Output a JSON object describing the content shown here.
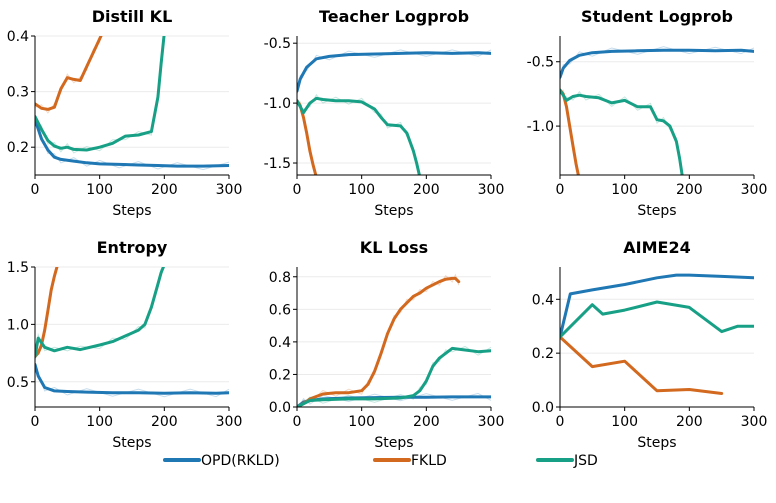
{
  "colors": {
    "rkld": "#1f77b4",
    "fkld": "#d2691e",
    "jsd": "#17a085"
  },
  "legend": [
    {
      "key": "rkld",
      "label": "OPD(RKLD)"
    },
    {
      "key": "fkld",
      "label": "FKLD"
    },
    {
      "key": "jsd",
      "label": "JSD"
    }
  ],
  "chart_data": [
    {
      "type": "line",
      "title": "Distill KL",
      "xlabel": "Steps",
      "xlim": [
        0,
        300
      ],
      "ylim": [
        0.15,
        0.4
      ],
      "xticks": [
        0,
        100,
        200,
        300
      ],
      "yticks": [
        0.2,
        0.3,
        0.4
      ],
      "ytick_labels": [
        "0.2",
        "0.3",
        "0.4"
      ],
      "series": [
        {
          "key": "rkld",
          "x": [
            0,
            10,
            20,
            30,
            40,
            60,
            80,
            100,
            130,
            160,
            190,
            220,
            260,
            300
          ],
          "y": [
            0.25,
            0.215,
            0.195,
            0.182,
            0.178,
            0.175,
            0.172,
            0.17,
            0.169,
            0.168,
            0.167,
            0.166,
            0.166,
            0.167
          ]
        },
        {
          "key": "fkld",
          "x": [
            0,
            10,
            20,
            30,
            40,
            50,
            60,
            70,
            80,
            90,
            100,
            104
          ],
          "y": [
            0.278,
            0.27,
            0.268,
            0.272,
            0.305,
            0.325,
            0.322,
            0.32,
            0.345,
            0.37,
            0.395,
            0.405
          ]
        },
        {
          "key": "jsd",
          "x": [
            0,
            10,
            20,
            30,
            40,
            50,
            60,
            80,
            100,
            120,
            140,
            160,
            180,
            190,
            195,
            200
          ],
          "y": [
            0.255,
            0.232,
            0.212,
            0.202,
            0.198,
            0.2,
            0.196,
            0.195,
            0.2,
            0.207,
            0.22,
            0.222,
            0.228,
            0.29,
            0.35,
            0.405
          ]
        }
      ]
    },
    {
      "type": "line",
      "title": "Teacher Logprob",
      "xlabel": "Steps",
      "xlim": [
        0,
        300
      ],
      "ylim": [
        -1.6,
        -0.44
      ],
      "xticks": [
        0,
        100,
        200,
        300
      ],
      "yticks": [
        -1.5,
        -1.0,
        -0.5
      ],
      "ytick_labels": [
        "-1.5",
        "-1.0",
        "-0.5"
      ],
      "series": [
        {
          "key": "rkld",
          "x": [
            0,
            5,
            15,
            30,
            50,
            80,
            120,
            160,
            200,
            240,
            280,
            300
          ],
          "y": [
            -0.9,
            -0.8,
            -0.7,
            -0.63,
            -0.61,
            -0.595,
            -0.59,
            -0.585,
            -0.58,
            -0.585,
            -0.58,
            -0.585
          ]
        },
        {
          "key": "fkld",
          "x": [
            0,
            5,
            10,
            15,
            20,
            25,
            30
          ],
          "y": [
            -0.98,
            -1.02,
            -1.12,
            -1.25,
            -1.4,
            -1.52,
            -1.62
          ]
        },
        {
          "key": "jsd",
          "x": [
            0,
            10,
            20,
            30,
            40,
            60,
            80,
            100,
            120,
            130,
            140,
            160,
            170,
            180,
            185,
            190
          ],
          "y": [
            -0.98,
            -1.08,
            -1.0,
            -0.96,
            -0.97,
            -0.98,
            -0.98,
            -0.99,
            -1.05,
            -1.12,
            -1.18,
            -1.19,
            -1.25,
            -1.4,
            -1.5,
            -1.62
          ]
        }
      ]
    },
    {
      "type": "line",
      "title": "Student Logprob",
      "xlabel": "Steps",
      "xlim": [
        0,
        300
      ],
      "ylim": [
        -1.38,
        -0.3
      ],
      "xticks": [
        0,
        100,
        200,
        300
      ],
      "yticks": [
        -1.0,
        -0.5
      ],
      "ytick_labels": [
        "-1.0",
        "-0.5"
      ],
      "series": [
        {
          "key": "rkld",
          "x": [
            0,
            5,
            15,
            30,
            50,
            80,
            120,
            160,
            200,
            240,
            280,
            300
          ],
          "y": [
            -0.62,
            -0.55,
            -0.49,
            -0.45,
            -0.43,
            -0.42,
            -0.415,
            -0.41,
            -0.41,
            -0.415,
            -0.41,
            -0.42
          ]
        },
        {
          "key": "fkld",
          "x": [
            0,
            5,
            10,
            15,
            20,
            25,
            30
          ],
          "y": [
            -0.72,
            -0.75,
            -0.85,
            -1.0,
            -1.15,
            -1.3,
            -1.42
          ]
        },
        {
          "key": "jsd",
          "x": [
            0,
            10,
            20,
            30,
            40,
            60,
            80,
            100,
            120,
            140,
            150,
            160,
            170,
            180,
            185,
            190
          ],
          "y": [
            -0.72,
            -0.8,
            -0.77,
            -0.76,
            -0.77,
            -0.78,
            -0.82,
            -0.8,
            -0.85,
            -0.85,
            -0.95,
            -0.96,
            -1.0,
            -1.12,
            -1.25,
            -1.42
          ]
        }
      ]
    },
    {
      "type": "line",
      "title": "Entropy",
      "xlabel": "Steps",
      "xlim": [
        0,
        300
      ],
      "ylim": [
        0.28,
        1.5
      ],
      "xticks": [
        0,
        100,
        200,
        300
      ],
      "yticks": [
        0.5,
        1.0,
        1.5
      ],
      "ytick_labels": [
        "0.5",
        "1.0",
        "1.5"
      ],
      "series": [
        {
          "key": "rkld",
          "x": [
            0,
            5,
            15,
            30,
            50,
            80,
            120,
            160,
            200,
            240,
            280,
            300
          ],
          "y": [
            0.65,
            0.55,
            0.45,
            0.42,
            0.415,
            0.41,
            0.405,
            0.405,
            0.4,
            0.405,
            0.4,
            0.405
          ]
        },
        {
          "key": "fkld",
          "x": [
            0,
            5,
            10,
            15,
            20,
            25,
            30,
            35
          ],
          "y": [
            0.72,
            0.75,
            0.82,
            0.95,
            1.12,
            1.3,
            1.42,
            1.52
          ]
        },
        {
          "key": "jsd",
          "x": [
            0,
            5,
            15,
            30,
            50,
            70,
            100,
            120,
            140,
            160,
            170,
            180,
            190,
            195,
            200
          ],
          "y": [
            0.72,
            0.88,
            0.8,
            0.77,
            0.8,
            0.78,
            0.82,
            0.85,
            0.9,
            0.95,
            1.0,
            1.15,
            1.35,
            1.45,
            1.52
          ]
        }
      ]
    },
    {
      "type": "line",
      "title": "KL Loss",
      "xlabel": "Steps",
      "xlim": [
        0,
        300
      ],
      "ylim": [
        0.0,
        0.86
      ],
      "xticks": [
        0,
        100,
        200,
        300
      ],
      "yticks": [
        0.0,
        0.2,
        0.4,
        0.6,
        0.8
      ],
      "ytick_labels": [
        "0.0",
        "0.2",
        "0.4",
        "0.6",
        "0.8"
      ],
      "series": [
        {
          "key": "rkld",
          "x": [
            0,
            10,
            20,
            40,
            80,
            120,
            160,
            200,
            240,
            280,
            300
          ],
          "y": [
            0.0,
            0.03,
            0.04,
            0.05,
            0.055,
            0.058,
            0.06,
            0.06,
            0.062,
            0.062,
            0.062
          ]
        },
        {
          "key": "fkld",
          "x": [
            0,
            10,
            20,
            40,
            60,
            80,
            100,
            110,
            120,
            130,
            140,
            150,
            160,
            170,
            180,
            190,
            200,
            210,
            220,
            230,
            240,
            245,
            250
          ],
          "y": [
            0.0,
            0.02,
            0.05,
            0.08,
            0.088,
            0.088,
            0.1,
            0.14,
            0.22,
            0.33,
            0.45,
            0.54,
            0.6,
            0.64,
            0.68,
            0.7,
            0.73,
            0.75,
            0.77,
            0.785,
            0.79,
            0.79,
            0.77
          ]
        },
        {
          "key": "jsd",
          "x": [
            0,
            20,
            40,
            80,
            120,
            160,
            180,
            190,
            200,
            210,
            220,
            230,
            240,
            260,
            280,
            300
          ],
          "y": [
            0.0,
            0.04,
            0.045,
            0.05,
            0.05,
            0.055,
            0.07,
            0.1,
            0.16,
            0.25,
            0.3,
            0.33,
            0.36,
            0.35,
            0.34,
            0.345
          ]
        }
      ]
    },
    {
      "type": "line",
      "title": "AIME24",
      "xlabel": "Steps",
      "xlim": [
        0,
        300
      ],
      "ylim": [
        0.0,
        0.52
      ],
      "xticks": [
        0,
        100,
        200,
        300
      ],
      "yticks": [
        0.0,
        0.2,
        0.4
      ],
      "ytick_labels": [
        "0.0",
        "0.2",
        "0.4"
      ],
      "series": [
        {
          "key": "rkld",
          "x": [
            0,
            16,
            50,
            100,
            150,
            180,
            200,
            250,
            300
          ],
          "y": [
            0.26,
            0.42,
            0.435,
            0.455,
            0.48,
            0.49,
            0.49,
            0.485,
            0.48
          ]
        },
        {
          "key": "fkld",
          "x": [
            0,
            50,
            100,
            150,
            200,
            250
          ],
          "y": [
            0.26,
            0.15,
            0.17,
            0.06,
            0.065,
            0.05
          ]
        },
        {
          "key": "jsd",
          "x": [
            0,
            50,
            66,
            100,
            150,
            200,
            250,
            275,
            300
          ],
          "y": [
            0.26,
            0.38,
            0.345,
            0.36,
            0.39,
            0.37,
            0.28,
            0.3,
            0.3
          ]
        }
      ]
    }
  ]
}
